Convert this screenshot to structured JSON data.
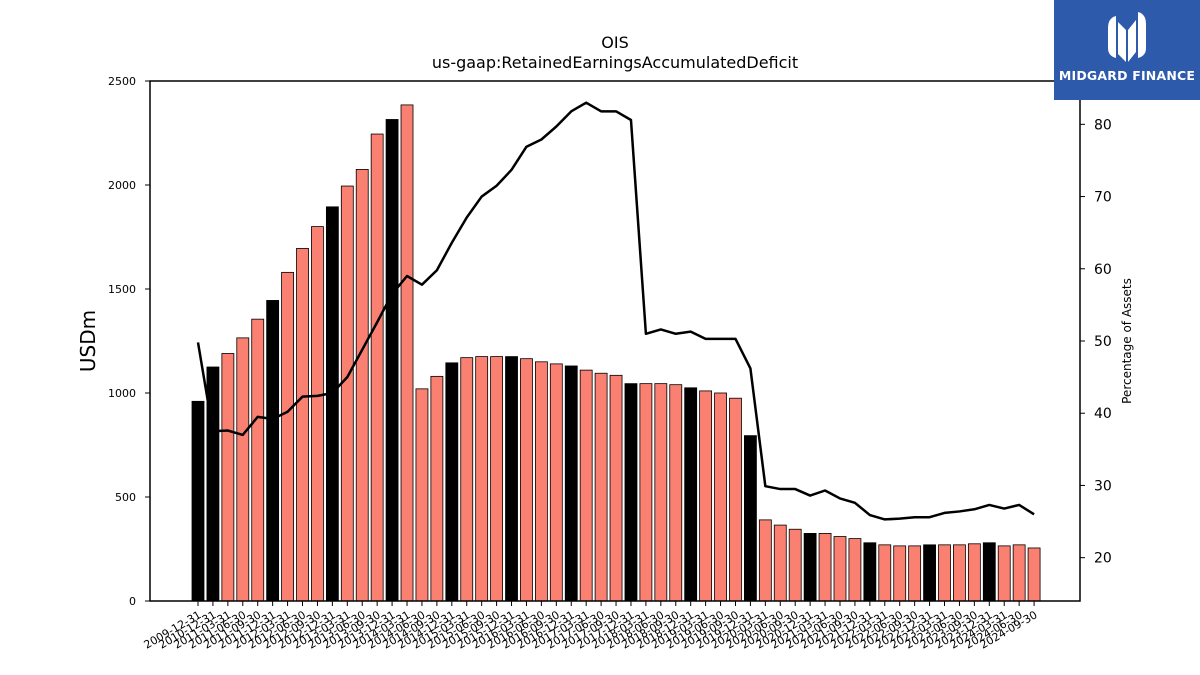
{
  "chart_data": {
    "type": "bar",
    "title": "OIS",
    "subtitle": "us-gaap:RetainedEarningsAccumulatedDeficit",
    "ylabel": "USDm",
    "y2label": "Percentage of Assets",
    "ylim": [
      0,
      2500
    ],
    "y2lim": [
      14,
      86
    ],
    "yticks": [
      0,
      500,
      1000,
      1500,
      2000,
      2500
    ],
    "y2ticks": [
      20,
      30,
      40,
      50,
      60,
      70,
      80
    ],
    "colors": {
      "q4": "#000000",
      "other": "#fa8072",
      "line": "#000000"
    },
    "categories": [
      "2009-12-31",
      "2010-12-31",
      "2011-03-31",
      "2011-06-30",
      "2011-09-30",
      "2011-12-31",
      "2012-03-31",
      "2012-06-30",
      "2012-09-30",
      "2012-12-31",
      "2013-03-31",
      "2013-06-30",
      "2013-09-30",
      "2013-12-31",
      "2014-03-31",
      "2014-06-30",
      "2014-09-30",
      "2014-12-31",
      "2015-03-31",
      "2015-06-30",
      "2015-09-30",
      "2015-12-31",
      "2016-03-31",
      "2016-06-30",
      "2016-09-30",
      "2016-12-31",
      "2017-03-31",
      "2017-06-30",
      "2017-09-30",
      "2017-12-31",
      "2018-03-31",
      "2018-06-30",
      "2018-09-30",
      "2018-12-31",
      "2019-03-31",
      "2019-06-30",
      "2019-09-30",
      "2019-12-31",
      "2020-03-31",
      "2020-06-30",
      "2020-09-30",
      "2020-12-31",
      "2021-03-31",
      "2021-06-30",
      "2021-09-30",
      "2021-12-31",
      "2022-03-31",
      "2022-06-30",
      "2022-09-30",
      "2022-12-31",
      "2023-03-31",
      "2023-06-30",
      "2023-09-30",
      "2023-12-31",
      "2024-03-31",
      "2024-06-30",
      "2024-09-30"
    ],
    "q4_flags": [
      true,
      true,
      false,
      false,
      false,
      true,
      false,
      false,
      false,
      true,
      false,
      false,
      false,
      true,
      false,
      false,
      false,
      true,
      false,
      false,
      false,
      true,
      false,
      false,
      false,
      true,
      false,
      false,
      false,
      true,
      false,
      false,
      false,
      true,
      false,
      false,
      false,
      true,
      false,
      false,
      false,
      true,
      false,
      false,
      false,
      true,
      false,
      false,
      false,
      true,
      false,
      false,
      false,
      true,
      false,
      false,
      false
    ],
    "series": [
      {
        "name": "RetainedEarningsAccumulatedDeficit",
        "axis": "left",
        "values": [
          960,
          1125,
          1190,
          1265,
          1355,
          1445,
          1580,
          1695,
          1800,
          1895,
          1995,
          2075,
          2245,
          2315,
          2385,
          1020,
          1080,
          1145,
          1170,
          1175,
          1175,
          1175,
          1165,
          1150,
          1140,
          1130,
          1110,
          1095,
          1085,
          1045,
          1045,
          1045,
          1040,
          1025,
          1010,
          1000,
          975,
          795,
          390,
          365,
          345,
          325,
          325,
          310,
          300,
          280,
          270,
          265,
          265,
          270,
          270,
          270,
          275,
          280,
          265,
          270,
          255
        ]
      },
      {
        "name": "Percentage of Assets",
        "axis": "right",
        "values": [
          49.8,
          37.5,
          37.6,
          37.0,
          39.5,
          39.2,
          40.2,
          42.3,
          42.4,
          42.8,
          45.0,
          48.8,
          52.6,
          56.5,
          59.0,
          57.8,
          59.8,
          63.6,
          67.1,
          70.0,
          71.5,
          73.7,
          76.9,
          77.9,
          79.7,
          81.8,
          83.0,
          81.8,
          81.8,
          80.6,
          51.0,
          51.6,
          51.0,
          51.3,
          50.3,
          50.3,
          50.3,
          46.2,
          29.9,
          29.5,
          29.5,
          28.6,
          29.3,
          28.2,
          27.6,
          25.9,
          25.3,
          25.4,
          25.6,
          25.6,
          26.2,
          26.4,
          26.7,
          27.3,
          26.8,
          27.3,
          26.0
        ]
      }
    ]
  },
  "logo": {
    "text": "MIDGARD FINANCE"
  }
}
